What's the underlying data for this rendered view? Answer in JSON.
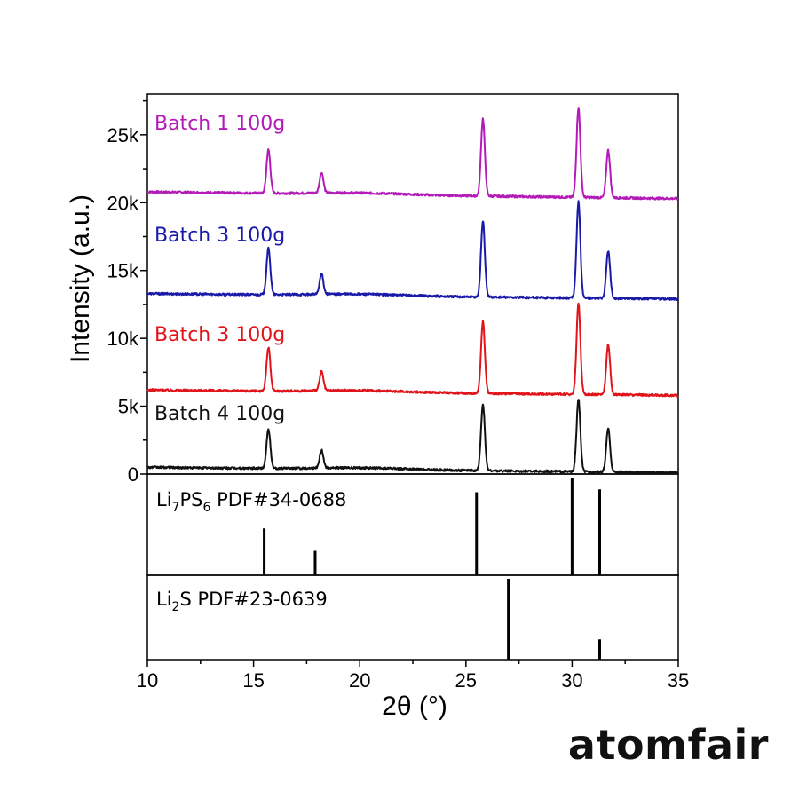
{
  "chart_data": {
    "type": "line",
    "xlabel": "2θ (°)",
    "ylabel": "Intensity (a.u.)",
    "xlim": [
      10,
      35
    ],
    "ylim": [
      0,
      28000
    ],
    "x_ticks": [
      "10",
      "15",
      "20",
      "25",
      "30",
      "35"
    ],
    "y_ticks": [
      "0",
      "5k",
      "10k",
      "15k",
      "20k",
      "25k"
    ],
    "grid": false,
    "series": [
      {
        "name": "Batch 1 100g",
        "color": "#b31ab8",
        "baseline": 20800,
        "baseline_end": 20300,
        "peaks": [
          [
            15.7,
            24000
          ],
          [
            18.2,
            22300
          ],
          [
            25.8,
            26500
          ],
          [
            30.3,
            27400
          ],
          [
            31.7,
            24300
          ]
        ]
      },
      {
        "name": "Batch 3 100g",
        "color": "#1a1aa8",
        "baseline": 13300,
        "baseline_end": 12900,
        "peaks": [
          [
            15.7,
            16700
          ],
          [
            18.2,
            14800
          ],
          [
            25.8,
            18900
          ],
          [
            30.3,
            20400
          ],
          [
            31.7,
            16800
          ]
        ]
      },
      {
        "name": "Batch 3 100g",
        "color": "#e0141a",
        "baseline": 6200,
        "baseline_end": 5800,
        "peaks": [
          [
            15.7,
            9400
          ],
          [
            18.2,
            7600
          ],
          [
            25.8,
            11500
          ],
          [
            30.3,
            12900
          ],
          [
            31.7,
            9900
          ]
        ]
      },
      {
        "name": "Batch 4 100g",
        "color": "#111111",
        "baseline": 500,
        "baseline_end": 100,
        "peaks": [
          [
            15.7,
            3400
          ],
          [
            18.2,
            1800
          ],
          [
            25.8,
            5400
          ],
          [
            30.3,
            5800
          ],
          [
            31.7,
            3700
          ]
        ]
      }
    ],
    "references": [
      {
        "label_prefix": "Li",
        "label_sub1": "7",
        "label_mid": "PS",
        "label_sub2": "6",
        "label_suffix": " PDF#34-0688",
        "lines": [
          [
            15.5,
            0.48
          ],
          [
            17.9,
            0.25
          ],
          [
            25.5,
            0.85
          ],
          [
            30.0,
            1.0
          ],
          [
            31.3,
            0.88
          ]
        ]
      },
      {
        "label_prefix": "Li",
        "label_sub1": "2",
        "label_mid": "S",
        "label_sub2": "",
        "label_suffix": " PDF#23-0639",
        "lines": [
          [
            27.0,
            1.0
          ],
          [
            31.3,
            0.25
          ]
        ]
      }
    ]
  },
  "branding": {
    "logo_text": "atomfair"
  }
}
